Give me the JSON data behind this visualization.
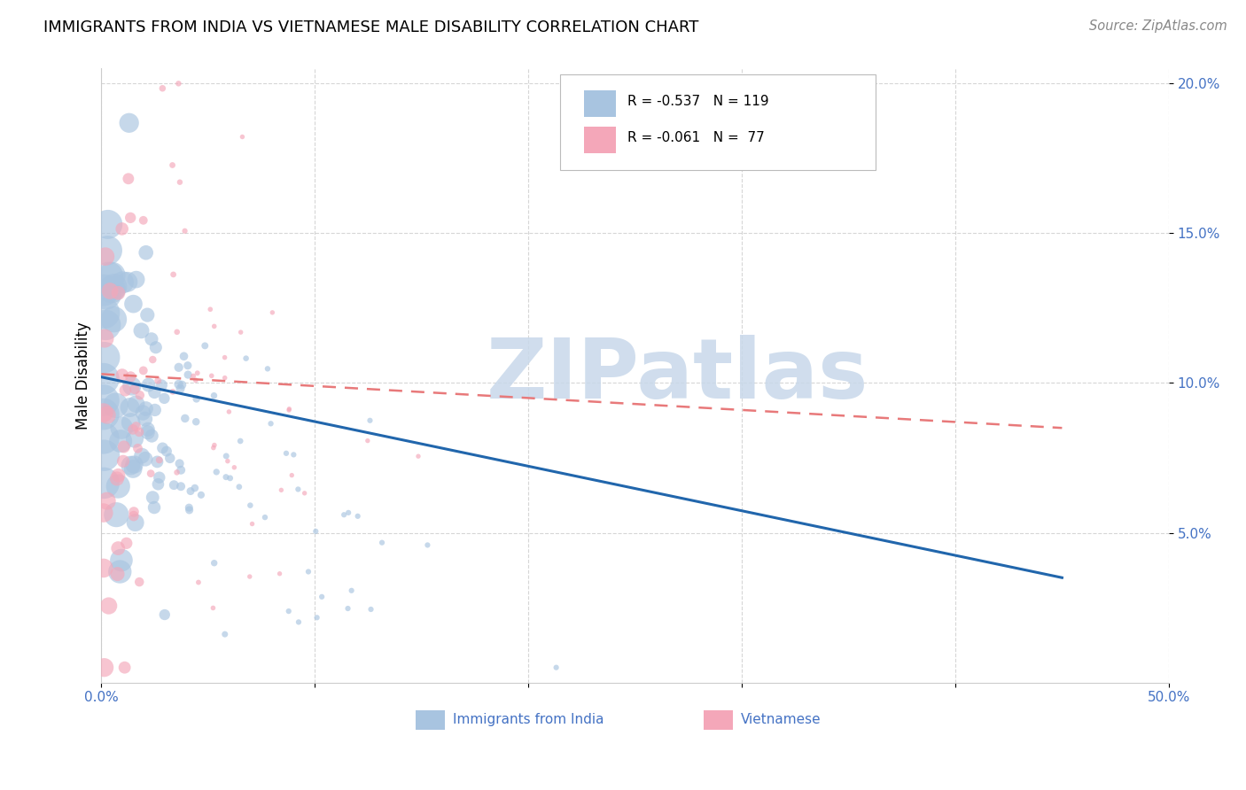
{
  "title": "IMMIGRANTS FROM INDIA VS VIETNAMESE MALE DISABILITY CORRELATION CHART",
  "source": "Source: ZipAtlas.com",
  "ylabel": "Male Disability",
  "x_min": 0.0,
  "x_max": 0.5,
  "y_min": 0.0,
  "y_max": 0.205,
  "y_ticks": [
    0.05,
    0.1,
    0.15,
    0.2
  ],
  "y_tick_labels": [
    "5.0%",
    "10.0%",
    "15.0%",
    "20.0%"
  ],
  "x_ticks": [
    0.0,
    0.1,
    0.2,
    0.3,
    0.4,
    0.5
  ],
  "x_tick_labels": [
    "0.0%",
    "",
    "",
    "",
    "",
    "50.0%"
  ],
  "blue_color": "#a8c4e0",
  "pink_color": "#f4a7b9",
  "blue_line_color": "#2166ac",
  "pink_line_color": "#e8797a",
  "india_R": -0.537,
  "india_N": 119,
  "viet_R": -0.061,
  "viet_N": 77,
  "india_line_start_y": 0.102,
  "india_line_end_y": 0.035,
  "viet_line_start_y": 0.103,
  "viet_line_end_y": 0.085,
  "india_seed": 12,
  "viet_seed": 55,
  "watermark": "ZIPatlas",
  "watermark_color": "#c8d8ea",
  "legend_label_blue": "Immigrants from India",
  "legend_label_pink": "Vietnamese",
  "legend_R_blue": "R = -0.537",
  "legend_N_blue": "N = 119",
  "legend_R_pink": "R = -0.061",
  "legend_N_pink": "N =  77"
}
